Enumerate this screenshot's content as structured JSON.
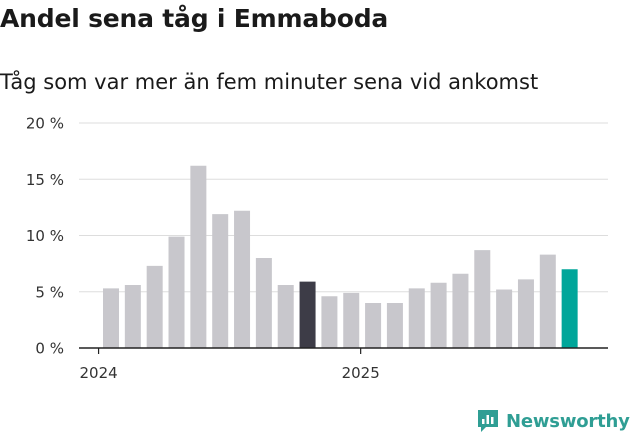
{
  "title": "Andel sena tåg i Emmaboda",
  "subtitle": "Tåg som var mer än fem minuter sena vid ankomst",
  "brand": {
    "name": "Newsworthy",
    "icon": "newsworthy-logo-icon",
    "color": "#2f9e94"
  },
  "colors": {
    "default_bar": "#c8c7cc",
    "dark_bar": "#3d3c47",
    "accent_bar": "#00a69a",
    "grid": "#dddddd",
    "axis": "#222222"
  },
  "chart_data": {
    "type": "bar",
    "title": "Andel sena tåg i Emmaboda",
    "subtitle": "Tåg som var mer än fem minuter sena vid ankomst",
    "x_tick_labels": [
      "2024",
      "2025"
    ],
    "y_tick_labels": [
      "0 %",
      "5 %",
      "10 %",
      "15 %",
      "20 %"
    ],
    "ylim": [
      0,
      20
    ],
    "grid": true,
    "categories": [
      "2024-01",
      "2024-02",
      "2024-03",
      "2024-04",
      "2024-05",
      "2024-06",
      "2024-07",
      "2024-08",
      "2024-09",
      "2024-10",
      "2024-11",
      "2024-12",
      "2025-01",
      "2025-02",
      "2025-03",
      "2025-04",
      "2025-05",
      "2025-06",
      "2025-07",
      "2025-08",
      "2025-09",
      "2025-10",
      "2025-11"
    ],
    "values": [
      5.3,
      5.6,
      7.3,
      9.9,
      16.2,
      11.9,
      12.2,
      8.0,
      5.6,
      5.9,
      4.6,
      4.9,
      4.0,
      4.0,
      5.3,
      5.8,
      6.6,
      8.7,
      5.2,
      6.1,
      8.3,
      7.0,
      null
    ],
    "highlight": {
      "2024-10": "dark",
      "2025-10": "accent"
    }
  }
}
